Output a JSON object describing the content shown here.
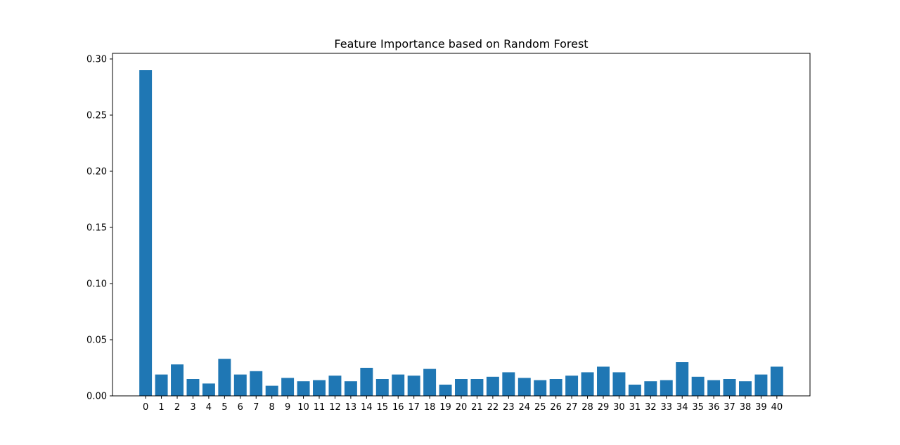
{
  "chart_data": {
    "type": "bar",
    "title": "Feature Importance based on Random Forest",
    "xlabel": "",
    "ylabel": "",
    "categories": [
      "0",
      "1",
      "2",
      "3",
      "4",
      "5",
      "6",
      "7",
      "8",
      "9",
      "10",
      "11",
      "12",
      "13",
      "14",
      "15",
      "16",
      "17",
      "18",
      "19",
      "20",
      "21",
      "22",
      "23",
      "24",
      "25",
      "26",
      "27",
      "28",
      "29",
      "30",
      "31",
      "32",
      "33",
      "34",
      "35",
      "36",
      "37",
      "38",
      "39",
      "40"
    ],
    "values": [
      0.29,
      0.019,
      0.028,
      0.015,
      0.011,
      0.033,
      0.019,
      0.022,
      0.009,
      0.016,
      0.013,
      0.014,
      0.018,
      0.013,
      0.025,
      0.015,
      0.019,
      0.018,
      0.024,
      0.01,
      0.015,
      0.015,
      0.017,
      0.021,
      0.016,
      0.014,
      0.015,
      0.018,
      0.021,
      0.026,
      0.021,
      0.01,
      0.013,
      0.014,
      0.03,
      0.017,
      0.014,
      0.015,
      0.013,
      0.019,
      0.026
    ],
    "ylim": [
      0,
      0.305
    ],
    "yticks": [
      0.0,
      0.05,
      0.1,
      0.15,
      0.2,
      0.25,
      0.3
    ],
    "ytick_labels": [
      "0.00",
      "0.05",
      "0.10",
      "0.15",
      "0.20",
      "0.25",
      "0.30"
    ],
    "grid": false,
    "bar_color": "#1f77b4"
  }
}
